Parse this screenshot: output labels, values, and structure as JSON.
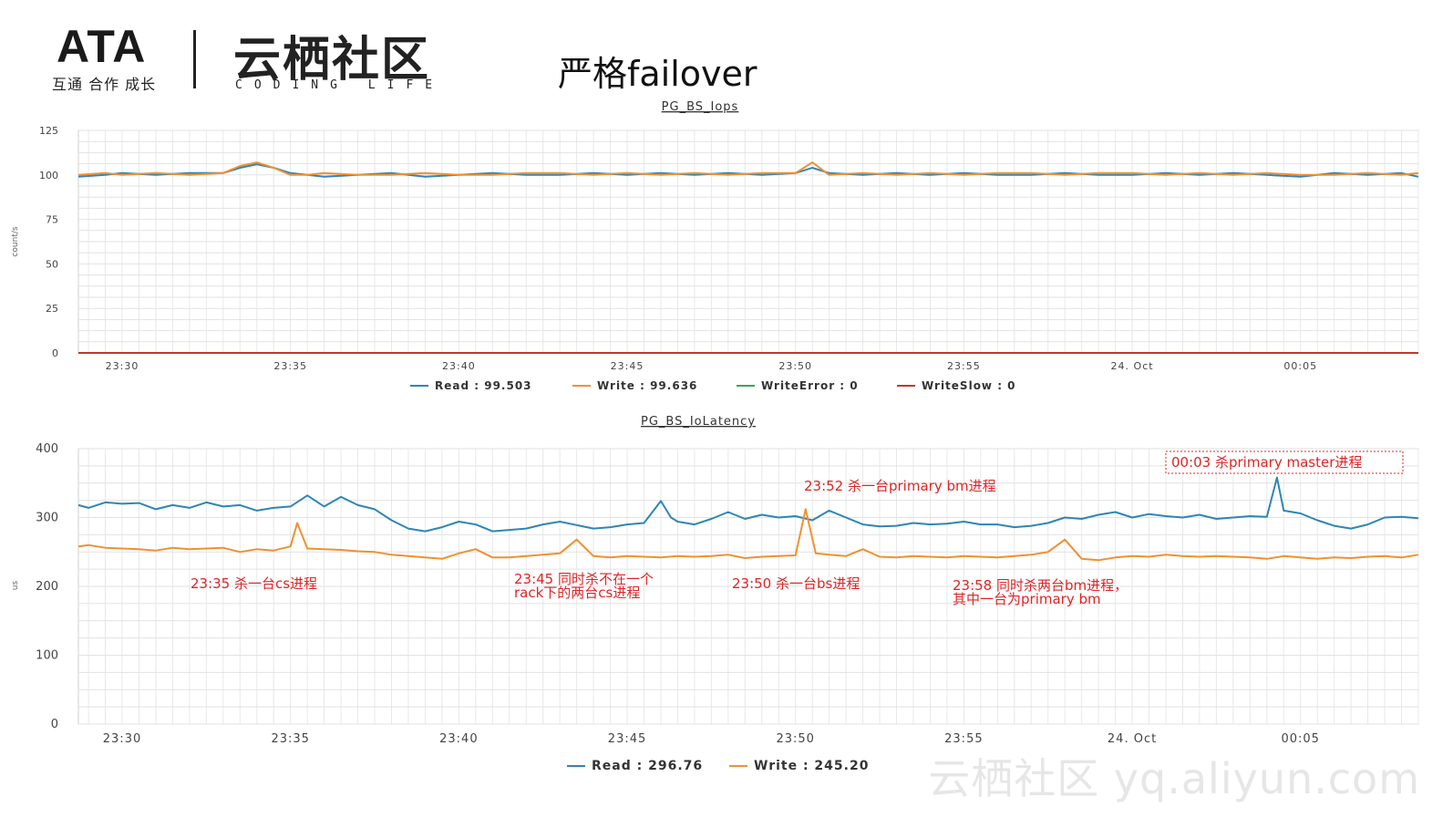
{
  "header": {
    "logo_text": "ATA",
    "logo_subtitle": "互通 合作 成长",
    "brand_text": "云栖社区",
    "brand_subtitle": "CODING LIFE",
    "slide_title": "严格failover"
  },
  "watermark": "云栖社区 yq.aliyun.com",
  "colors": {
    "read": "#2e86b5",
    "write": "#f0912f",
    "writeError": "#3aa655",
    "writeSlow": "#c0392b",
    "annotation": "#e02424"
  },
  "chart_data": [
    {
      "type": "line",
      "title": "PG_BS_Iops",
      "ylabel": "count/s",
      "ylim": [
        0,
        125
      ],
      "yticks": [
        0,
        25,
        50,
        75,
        100,
        125
      ],
      "x_tick_labels": [
        "23:30",
        "23:35",
        "23:40",
        "23:45",
        "23:50",
        "23:55",
        "24. Oct",
        "00:05"
      ],
      "x_tick_minutes": [
        0,
        5,
        10,
        15,
        20,
        25,
        30,
        35
      ],
      "x_range_minutes": [
        -1.3,
        38.5
      ],
      "series": [
        {
          "name": "Read",
          "legend": "Read : 99.503",
          "color": "#2e86b5",
          "x": [
            -1.3,
            -0.5,
            0,
            1,
            2,
            3,
            3.5,
            4,
            4.5,
            5,
            5.5,
            6,
            7,
            8,
            9,
            10,
            11,
            12,
            13,
            14,
            15,
            16,
            17,
            18,
            19,
            20,
            20.5,
            21,
            22,
            23,
            24,
            25,
            26,
            27,
            28,
            29,
            30,
            31,
            32,
            33,
            34,
            35,
            36,
            37,
            38,
            38.5
          ],
          "values": [
            99,
            100,
            101,
            100,
            101,
            101,
            104,
            106,
            104,
            101,
            100,
            99,
            100,
            101,
            99,
            100,
            101,
            100,
            100,
            101,
            100,
            101,
            100,
            101,
            100,
            101,
            104,
            101,
            100,
            101,
            100,
            101,
            100,
            100,
            101,
            100,
            100,
            101,
            100,
            101,
            100,
            99,
            101,
            100,
            101,
            99
          ]
        },
        {
          "name": "Write",
          "legend": "Write : 99.636",
          "color": "#f0912f",
          "x": [
            -1.3,
            -0.5,
            0,
            1,
            2,
            3,
            3.5,
            4,
            4.5,
            5,
            5.5,
            6,
            7,
            8,
            9,
            10,
            11,
            12,
            13,
            14,
            15,
            16,
            17,
            18,
            19,
            20,
            20.5,
            21,
            22,
            23,
            24,
            25,
            26,
            27,
            28,
            29,
            30,
            31,
            32,
            33,
            34,
            35,
            36,
            37,
            38,
            38.5
          ],
          "values": [
            100,
            101,
            100,
            101,
            100,
            101,
            105,
            107,
            104,
            100,
            100,
            101,
            100,
            100,
            101,
            100,
            100,
            101,
            101,
            100,
            101,
            100,
            101,
            100,
            101,
            101,
            107,
            100,
            101,
            100,
            101,
            100,
            101,
            101,
            100,
            101,
            101,
            100,
            101,
            100,
            101,
            100,
            100,
            101,
            100,
            101
          ]
        },
        {
          "name": "WriteError",
          "legend": "WriteError : 0",
          "color": "#3aa655",
          "x": [
            -1.3,
            38.5
          ],
          "values": [
            0,
            0
          ]
        },
        {
          "name": "WriteSlow",
          "legend": "WriteSlow : 0",
          "color": "#c0392b",
          "x": [
            -1.3,
            38.5
          ],
          "values": [
            0,
            0
          ]
        }
      ]
    },
    {
      "type": "line",
      "title": "PG_BS_IoLatency",
      "ylabel": "us",
      "ylim": [
        0,
        400
      ],
      "yticks": [
        0,
        100,
        200,
        300,
        400
      ],
      "x_tick_labels": [
        "23:30",
        "23:35",
        "23:40",
        "23:45",
        "23:50",
        "23:55",
        "24. Oct",
        "00:05"
      ],
      "x_tick_minutes": [
        0,
        5,
        10,
        15,
        20,
        25,
        30,
        35
      ],
      "x_range_minutes": [
        -1.3,
        38.5
      ],
      "series": [
        {
          "name": "Read",
          "legend": "Read : 296.76",
          "color": "#2e86b5",
          "x": [
            -1.3,
            -1,
            -0.5,
            0,
            0.5,
            1,
            1.5,
            2,
            2.5,
            3,
            3.5,
            4,
            4.5,
            5,
            5.5,
            6,
            6.5,
            7,
            7.5,
            8,
            8.5,
            9,
            9.5,
            10,
            10.5,
            11,
            11.5,
            12,
            12.5,
            13,
            13.5,
            14,
            14.5,
            15,
            15.5,
            16,
            16.3,
            16.5,
            17,
            17.5,
            18,
            18.5,
            19,
            19.5,
            20,
            20.5,
            21,
            21.5,
            22,
            22.5,
            23,
            23.5,
            24,
            24.5,
            25,
            25.5,
            26,
            26.5,
            27,
            27.5,
            28,
            28.5,
            29,
            29.5,
            30,
            30.5,
            31,
            31.5,
            32,
            32.5,
            33,
            33.5,
            34,
            34.3,
            34.5,
            35,
            35.5,
            36,
            36.5,
            37,
            37.5,
            38,
            38.5
          ],
          "values": [
            318,
            314,
            322,
            320,
            321,
            312,
            318,
            314,
            322,
            316,
            318,
            310,
            314,
            316,
            332,
            316,
            330,
            318,
            312,
            296,
            284,
            280,
            286,
            294,
            290,
            280,
            282,
            284,
            290,
            294,
            289,
            284,
            286,
            290,
            292,
            324,
            300,
            294,
            290,
            298,
            308,
            298,
            304,
            300,
            302,
            296,
            310,
            300,
            290,
            287,
            288,
            292,
            290,
            291,
            294,
            290,
            290,
            286,
            288,
            292,
            300,
            298,
            304,
            308,
            300,
            305,
            302,
            300,
            304,
            298,
            300,
            302,
            301,
            358,
            310,
            306,
            296,
            288,
            284,
            290,
            300,
            301,
            299
          ]
        },
        {
          "name": "Write",
          "legend": "Write : 245.20",
          "color": "#f0912f",
          "x": [
            -1.3,
            -1,
            -0.5,
            0,
            0.5,
            1,
            1.5,
            2,
            2.5,
            3,
            3.5,
            4,
            4.5,
            5,
            5.2,
            5.5,
            6,
            6.5,
            7,
            7.5,
            8,
            8.5,
            9,
            9.5,
            10,
            10.5,
            11,
            11.5,
            12,
            12.5,
            13,
            13.5,
            14,
            14.5,
            15,
            15.5,
            16,
            16.5,
            17,
            17.5,
            18,
            18.5,
            19,
            19.5,
            20,
            20.3,
            20.6,
            21,
            21.5,
            22,
            22.5,
            23,
            23.5,
            24,
            24.5,
            25,
            25.5,
            26,
            26.5,
            27,
            27.5,
            28,
            28.5,
            29,
            29.5,
            30,
            30.5,
            31,
            31.5,
            32,
            32.5,
            33,
            33.5,
            34,
            34.5,
            35,
            35.5,
            36,
            36.5,
            37,
            37.5,
            38,
            38.5
          ],
          "values": [
            258,
            260,
            256,
            255,
            254,
            252,
            256,
            254,
            255,
            256,
            250,
            254,
            252,
            258,
            292,
            255,
            254,
            253,
            251,
            250,
            246,
            244,
            242,
            240,
            248,
            254,
            242,
            242,
            244,
            246,
            248,
            268,
            244,
            242,
            244,
            243,
            242,
            244,
            243,
            244,
            246,
            241,
            243,
            244,
            245,
            312,
            248,
            246,
            244,
            254,
            243,
            242,
            244,
            243,
            242,
            244,
            243,
            242,
            244,
            246,
            250,
            268,
            240,
            238,
            242,
            244,
            243,
            246,
            244,
            243,
            244,
            243,
            242,
            240,
            244,
            242,
            240,
            242,
            241,
            243,
            244,
            242,
            246
          ]
        }
      ],
      "annotations": [
        {
          "text": "23:35 杀一台cs进程"
        },
        {
          "text": "23:45 同时杀不在一个",
          "text2": "rack下的两台cs进程"
        },
        {
          "text": "23:50 杀一台bs进程"
        },
        {
          "text": "23:52 杀一台primary bm进程"
        },
        {
          "text": "23:58 同时杀两台bm进程，",
          "text2": "其中一台为primary bm"
        },
        {
          "text": "00:03 杀primary master进程",
          "boxed": true
        }
      ]
    }
  ]
}
